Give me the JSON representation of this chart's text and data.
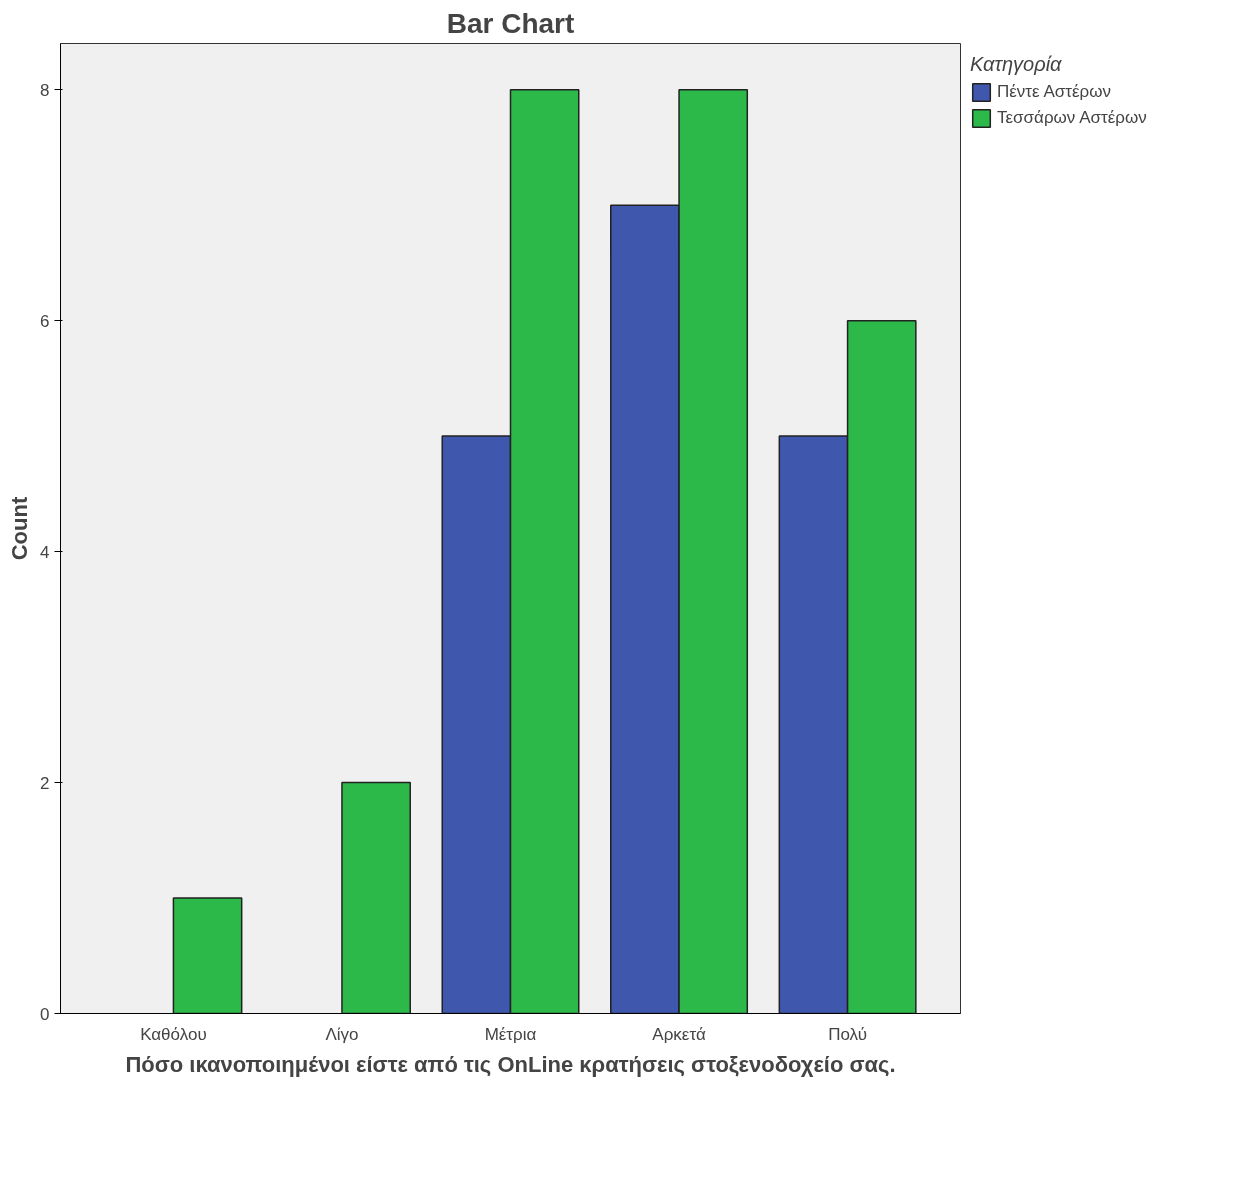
{
  "chart_data": {
    "type": "bar",
    "title": "Bar Chart",
    "xlabel": "Πόσο ικανοποιημένοι είστε από τις OnLine κρατήσεις στοξενοδοχείο σας.",
    "ylabel": "Count",
    "legend_title": "Κατηγορία",
    "categories": [
      "Καθόλου",
      "Λίγο",
      "Μέτρια",
      "Αρκετά",
      "Πολύ"
    ],
    "series": [
      {
        "name": "Πέντε Αστέρων",
        "color": "#3f58ad",
        "values": [
          null,
          null,
          5,
          7,
          5
        ]
      },
      {
        "name": "Τεσσάρων Αστέρων",
        "color": "#2db84a",
        "values": [
          1,
          2,
          8,
          8,
          6
        ]
      }
    ],
    "ylim": [
      0,
      8.4
    ],
    "yticks": [
      0,
      2,
      4,
      6,
      8
    ],
    "grid": false,
    "legend": "top right"
  }
}
